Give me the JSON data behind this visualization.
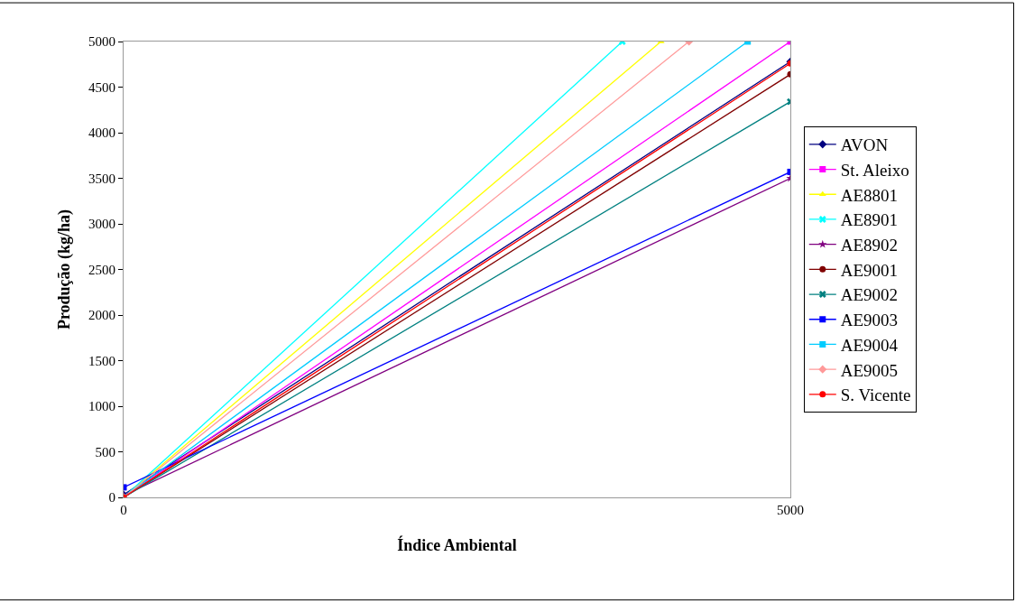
{
  "chart_data": {
    "type": "line",
    "xlabel": "Índice Ambiental",
    "ylabel": "Produção (kg/ha)",
    "xlim": [
      0,
      5000
    ],
    "xticks": [
      0,
      5000
    ],
    "ylim": [
      0,
      5000
    ],
    "yticks": [
      0,
      500,
      1000,
      1500,
      2000,
      2500,
      3000,
      3500,
      4000,
      4500,
      5000
    ],
    "legend": "right",
    "series": [
      {
        "name": "AVON",
        "color": "#000080",
        "marker": "diamond",
        "x": [
          0,
          5000
        ],
        "values": [
          30,
          4780
        ]
      },
      {
        "name": "St. Aleixo",
        "color": "#ff00ff",
        "marker": "square",
        "x": [
          0,
          5000
        ],
        "values": [
          0,
          5000
        ]
      },
      {
        "name": "AE8801",
        "color": "#ffff00",
        "marker": "triangle",
        "x": [
          0,
          4030
        ],
        "values": [
          0,
          5000
        ]
      },
      {
        "name": "AE8901",
        "color": "#00ffff",
        "marker": "cross",
        "x": [
          0,
          3740
        ],
        "values": [
          0,
          5000
        ]
      },
      {
        "name": "AE8902",
        "color": "#800080",
        "marker": "star",
        "x": [
          0,
          5000
        ],
        "values": [
          20,
          3500
        ]
      },
      {
        "name": "AE9001",
        "color": "#800000",
        "marker": "circle",
        "x": [
          0,
          5000
        ],
        "values": [
          0,
          4640
        ]
      },
      {
        "name": "AE9002",
        "color": "#008080",
        "marker": "cross",
        "x": [
          0,
          5000
        ],
        "values": [
          0,
          4340
        ]
      },
      {
        "name": "AE9003",
        "color": "#0000ff",
        "marker": "square",
        "x": [
          0,
          5000
        ],
        "values": [
          110,
          3570
        ]
      },
      {
        "name": "AE9004",
        "color": "#00ccff",
        "marker": "square",
        "x": [
          0,
          4680
        ],
        "values": [
          0,
          5000
        ]
      },
      {
        "name": "AE9005",
        "color": "#ff9999",
        "marker": "diamond",
        "x": [
          0,
          4240
        ],
        "values": [
          0,
          5000
        ]
      },
      {
        "name": "S. Vicente",
        "color": "#ff0000",
        "marker": "circle",
        "x": [
          0,
          5000
        ],
        "values": [
          0,
          4760
        ]
      }
    ]
  }
}
